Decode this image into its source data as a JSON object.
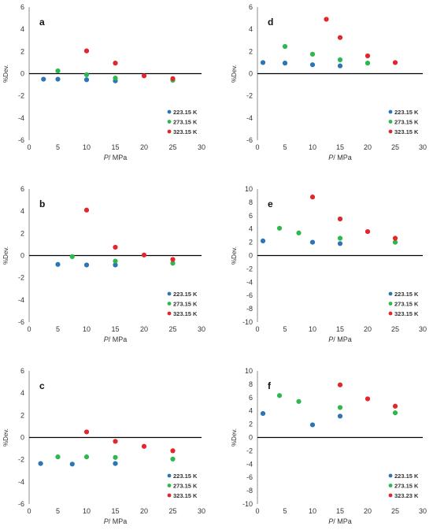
{
  "chart_data": [
    {
      "type": "scatter",
      "panel_label": "a",
      "xlabel_italic": "P",
      "xlabel_rest": "/ MPa",
      "ylabel": "%Dev.",
      "xlim": [
        0,
        30
      ],
      "ylim": [
        -6,
        6
      ],
      "xticks": [
        0,
        5,
        10,
        15,
        20,
        25,
        30
      ],
      "yticks": [
        -6,
        -4,
        -2,
        0,
        2,
        4,
        6
      ],
      "grid": false,
      "legend_position": "bottom-right",
      "series": [
        {
          "name": "223.15 K",
          "color": "#2E75B6",
          "points": [
            [
              2.5,
              -0.5
            ],
            [
              5,
              -0.5
            ],
            [
              10,
              -0.55
            ],
            [
              15,
              -0.65
            ]
          ]
        },
        {
          "name": "273.15 K",
          "color": "#2DB84D",
          "points": [
            [
              5,
              0.25
            ],
            [
              10,
              -0.1
            ],
            [
              15,
              -0.4
            ],
            [
              25,
              -0.6
            ]
          ]
        },
        {
          "name": "323.15 K",
          "color": "#E3262B",
          "points": [
            [
              10,
              2.05
            ],
            [
              15,
              0.95
            ],
            [
              20,
              -0.2
            ],
            [
              25,
              -0.45
            ]
          ]
        }
      ]
    },
    {
      "type": "scatter",
      "panel_label": "d",
      "xlabel_italic": "P",
      "xlabel_rest": "/ MPa",
      "ylabel": "%Dev.",
      "xlim": [
        0,
        30
      ],
      "ylim": [
        -6,
        6
      ],
      "xticks": [
        0,
        5,
        10,
        15,
        20,
        25,
        30
      ],
      "yticks": [
        -6,
        -4,
        -2,
        0,
        2,
        4,
        6
      ],
      "grid": false,
      "legend_position": "bottom-right",
      "series": [
        {
          "name": "223.15 K",
          "color": "#2E75B6",
          "points": [
            [
              1,
              1.0
            ],
            [
              5,
              0.95
            ],
            [
              10,
              0.8
            ],
            [
              15,
              0.7
            ]
          ]
        },
        {
          "name": "273.15 K",
          "color": "#2DB84D",
          "points": [
            [
              5,
              2.45
            ],
            [
              10,
              1.75
            ],
            [
              15,
              1.25
            ],
            [
              20,
              0.95
            ]
          ]
        },
        {
          "name": "323.15 K",
          "color": "#E3262B",
          "points": [
            [
              12.5,
              4.9
            ],
            [
              15,
              3.25
            ],
            [
              20,
              1.6
            ],
            [
              25,
              1.0
            ]
          ]
        }
      ]
    },
    {
      "type": "scatter",
      "panel_label": "b",
      "xlabel_italic": "P",
      "xlabel_rest": "/ MPa",
      "ylabel": "%Dev.",
      "xlim": [
        0,
        30
      ],
      "ylim": [
        -6,
        6
      ],
      "xticks": [
        0,
        5,
        10,
        15,
        20,
        25,
        30
      ],
      "yticks": [
        -6,
        -4,
        -2,
        0,
        2,
        4,
        6
      ],
      "grid": false,
      "legend_position": "bottom-right",
      "series": [
        {
          "name": "223.15 K",
          "color": "#2E75B6",
          "points": [
            [
              5,
              -0.8
            ],
            [
              10,
              -0.85
            ],
            [
              15,
              -0.85
            ]
          ]
        },
        {
          "name": "273.15 K",
          "color": "#2DB84D",
          "points": [
            [
              7.5,
              -0.1
            ],
            [
              15,
              -0.5
            ],
            [
              25,
              -0.7
            ]
          ]
        },
        {
          "name": "323.15 K",
          "color": "#E3262B",
          "points": [
            [
              10,
              4.1
            ],
            [
              15,
              0.75
            ],
            [
              20,
              0.05
            ],
            [
              25,
              -0.35
            ]
          ]
        }
      ]
    },
    {
      "type": "scatter",
      "panel_label": "e",
      "xlabel_italic": "P",
      "xlabel_rest": "/ MPa",
      "ylabel": "%Dev.",
      "xlim": [
        0,
        30
      ],
      "ylim": [
        -10,
        10
      ],
      "xticks": [
        0,
        5,
        10,
        15,
        20,
        25,
        30
      ],
      "yticks": [
        -10,
        -8,
        -6,
        -4,
        -2,
        0,
        2,
        4,
        6,
        8,
        10
      ],
      "grid": false,
      "legend_position": "bottom-right",
      "series": [
        {
          "name": "223.15 K",
          "color": "#2E75B6",
          "points": [
            [
              1,
              2.2
            ],
            [
              10,
              2.0
            ],
            [
              15,
              1.8
            ]
          ]
        },
        {
          "name": "273.15 K",
          "color": "#2DB84D",
          "points": [
            [
              4,
              4.1
            ],
            [
              7.5,
              3.4
            ],
            [
              15,
              2.6
            ],
            [
              25,
              2.0
            ]
          ]
        },
        {
          "name": "323.15 K",
          "color": "#E3262B",
          "points": [
            [
              10,
              8.8
            ],
            [
              15,
              5.5
            ],
            [
              20,
              3.6
            ],
            [
              25,
              2.6
            ]
          ]
        }
      ]
    },
    {
      "type": "scatter",
      "panel_label": "c",
      "xlabel_italic": "P",
      "xlabel_rest": "/ MPa",
      "ylabel": "%Dev.",
      "xlim": [
        0,
        30
      ],
      "ylim": [
        -6,
        6
      ],
      "xticks": [
        0,
        5,
        10,
        15,
        20,
        25,
        30
      ],
      "yticks": [
        -6,
        -4,
        -2,
        0,
        2,
        4,
        6
      ],
      "grid": false,
      "legend_position": "bottom-right",
      "series": [
        {
          "name": "223.15 K",
          "color": "#2E75B6",
          "points": [
            [
              2,
              -2.35
            ],
            [
              7.5,
              -2.4
            ],
            [
              15,
              -2.35
            ]
          ]
        },
        {
          "name": "273.15 K",
          "color": "#2DB84D",
          "points": [
            [
              5,
              -1.75
            ],
            [
              10,
              -1.75
            ],
            [
              15,
              -1.8
            ],
            [
              25,
              -1.95
            ]
          ]
        },
        {
          "name": "323.15 K",
          "color": "#E3262B",
          "points": [
            [
              10,
              0.5
            ],
            [
              15,
              -0.35
            ],
            [
              20,
              -0.8
            ],
            [
              25,
              -1.2
            ]
          ]
        }
      ]
    },
    {
      "type": "scatter",
      "panel_label": "f",
      "xlabel_italic": "P",
      "xlabel_rest": "/ MPa",
      "ylabel": "%Dev.",
      "xlim": [
        0,
        30
      ],
      "ylim": [
        -10,
        10
      ],
      "xticks": [
        0,
        5,
        10,
        15,
        20,
        25,
        30
      ],
      "yticks": [
        -10,
        -8,
        -6,
        -4,
        -2,
        0,
        2,
        4,
        6,
        8,
        10
      ],
      "grid": false,
      "legend_position": "bottom-right",
      "series": [
        {
          "name": "223.15 K",
          "color": "#2E75B6",
          "points": [
            [
              1,
              3.6
            ],
            [
              10,
              1.9
            ],
            [
              15,
              3.2
            ]
          ]
        },
        {
          "name": "273.15 K",
          "color": "#2DB84D",
          "points": [
            [
              4,
              6.3
            ],
            [
              7.5,
              5.4
            ],
            [
              15,
              4.5
            ],
            [
              25,
              3.7
            ]
          ]
        },
        {
          "name": "323.23 K",
          "color": "#E3262B",
          "points": [
            [
              15,
              7.9
            ],
            [
              20,
              5.8
            ],
            [
              25,
              4.7
            ]
          ]
        }
      ]
    }
  ]
}
